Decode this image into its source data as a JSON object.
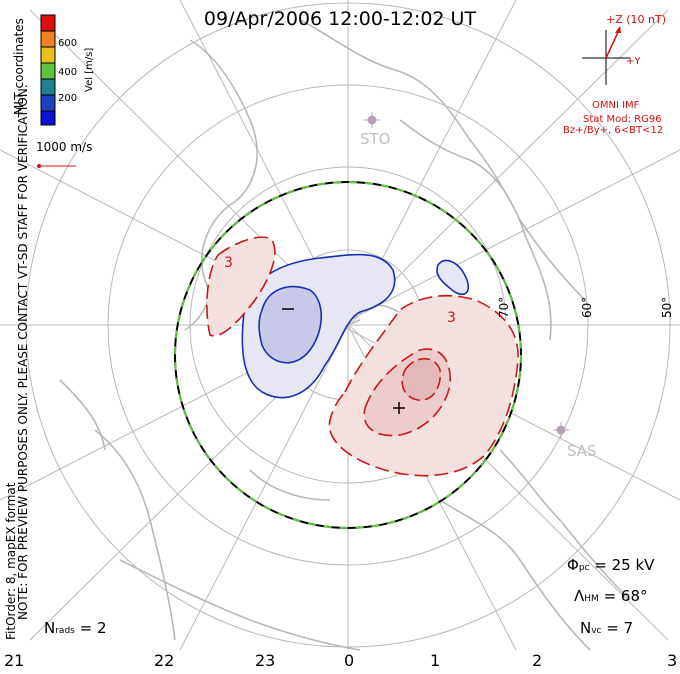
{
  "title": "09/Apr/2006 12:00-12:02 UT",
  "left_notes": {
    "coords": "MLT coordinates",
    "preview": "NOTE: FOR PREVIEW PURPOSES ONLY. PLEASE CONTACT VT-SD STAFF FOR VERIFICATION.",
    "fit": "FitOrder: 8, mapEX format"
  },
  "colorbar": {
    "label": "Vel [m/s]",
    "ticks": [
      "600",
      "400",
      "200"
    ],
    "colors": [
      "#e01010",
      "#f08020",
      "#e8c020",
      "#60c040",
      "#208090",
      "#2040c0",
      "#1010d8"
    ]
  },
  "vector_scale": {
    "label": "1000 m/s",
    "color": "#d81010"
  },
  "imf": {
    "z_label": "+Z (10 nT)",
    "y_label": "+Y",
    "source": "OMNI IMF",
    "model": "Stat Mod: RG96",
    "condition": "Bz+/By+, 6<BT<12"
  },
  "stations": [
    "STO",
    "SAS"
  ],
  "latitude_labels": [
    "70°",
    "60°",
    "50°"
  ],
  "potential_labels": {
    "negative": "−",
    "positive": "+",
    "contour": "3"
  },
  "stats": {
    "phi_symbol": "Φ",
    "phi_sub": "pc",
    "phi_value": "= 25 kV",
    "lambda_symbol": "Λ",
    "lambda_sub": "HM",
    "lambda_value": "= 68°",
    "nvc_symbol": "N",
    "nvc_sub": "vc",
    "nvc_value": "= 7",
    "nrads_symbol": "N",
    "nrads_sub": "rads",
    "nrads_value": "= 2"
  },
  "mlt_labels": [
    "21",
    "22",
    "23",
    "0",
    "1",
    "2",
    "3"
  ],
  "colors": {
    "negative_cell": "#1830b0",
    "positive_cell": "#c81818",
    "hm_boundary": "#60c040",
    "grid": "#b8b8b8",
    "coast": "#b8b8b8"
  }
}
